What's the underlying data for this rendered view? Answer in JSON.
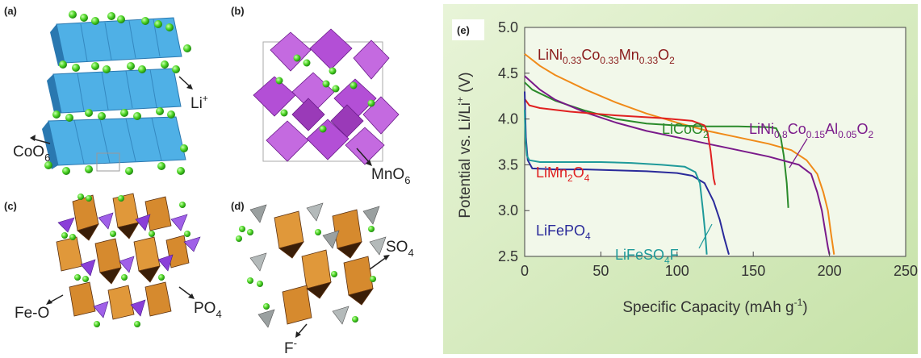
{
  "panels": {
    "a": {
      "label": "(a)",
      "annotations": [
        {
          "text": "Li",
          "sup": "+",
          "color": "#5a8a1a"
        },
        {
          "text": "CoO",
          "sub": "6",
          "color": "#222222"
        }
      ]
    },
    "b": {
      "label": "(b)",
      "annotations": [
        {
          "text": "MnO",
          "sub": "6",
          "color": "#222222"
        }
      ]
    },
    "c": {
      "label": "(c)",
      "annotations": [
        {
          "text": "Fe-O",
          "color": "#222222"
        },
        {
          "text": "PO",
          "sub": "4",
          "color": "#222222"
        }
      ]
    },
    "d": {
      "label": "(d)",
      "annotations": [
        {
          "text": "SO",
          "sub": "4",
          "color": "#222222"
        },
        {
          "text": "F",
          "sup": "-",
          "color": "#222222"
        }
      ]
    }
  },
  "colors": {
    "cobalt_octahedra": "#4fb0e6",
    "manganese_octahedra": "#b34fd6",
    "iron_polyhedra": "#d68a2e",
    "phosphate_tetrahedra": "#8a3fd8",
    "sulfate_tetrahedra": "#9aa0a0",
    "lithium_atoms": "#4fd626",
    "chart_background": "#d9ecc4"
  },
  "chart_data": {
    "type": "line",
    "panel_label": "(e)",
    "xlabel": "Specific Capacity (mAh g",
    "xlabel_sup": "-1",
    "xlabel_end": ")",
    "ylabel": "Potential vs. Li/Li",
    "ylabel_sup": "+",
    "ylabel_end": " (V)",
    "xlim": [
      0,
      250
    ],
    "ylim": [
      2.5,
      5.0
    ],
    "xticks": [
      0,
      50,
      100,
      150,
      200,
      250
    ],
    "yticks": [
      2.5,
      3.0,
      3.5,
      4.0,
      4.5,
      5.0
    ],
    "series": [
      {
        "name": "LiNi0.33Co0.33Mn0.33O2",
        "color": "#f08a18",
        "label_parts": [
          {
            "t": "LiNi"
          },
          {
            "t": "0.33",
            "sub": true
          },
          {
            "t": "Co"
          },
          {
            "t": "0.33",
            "sub": true
          },
          {
            "t": "Mn"
          },
          {
            "t": "0.33",
            "sub": true
          },
          {
            "t": "O"
          },
          {
            "t": "2",
            "sub": true
          }
        ],
        "label_color": "#8a1a1a",
        "x": [
          0,
          10,
          20,
          40,
          60,
          80,
          100,
          120,
          140,
          160,
          175,
          185,
          192,
          196,
          199,
          201,
          203
        ],
        "y": [
          4.71,
          4.58,
          4.48,
          4.32,
          4.18,
          4.06,
          3.96,
          3.87,
          3.8,
          3.73,
          3.66,
          3.55,
          3.4,
          3.2,
          3.0,
          2.75,
          2.52
        ]
      },
      {
        "name": "LiCoO2",
        "color": "#2a8a2a",
        "label_parts": [
          {
            "t": "LiCoO"
          },
          {
            "t": "2",
            "sub": true
          }
        ],
        "label_color": "#2a8a2a",
        "x": [
          0,
          5,
          10,
          20,
          40,
          60,
          80,
          100,
          120,
          140,
          160,
          165,
          168,
          170,
          172,
          173
        ],
        "y": [
          4.4,
          4.32,
          4.28,
          4.2,
          4.09,
          4.0,
          3.95,
          3.93,
          3.92,
          3.92,
          3.91,
          3.9,
          3.8,
          3.6,
          3.3,
          3.03
        ]
      },
      {
        "name": "LiNi0.8Co0.15Al0.05O2",
        "color": "#7a1a8a",
        "label_parts": [
          {
            "t": "LiNi"
          },
          {
            "t": "0.8",
            "sub": true
          },
          {
            "t": "Co"
          },
          {
            "t": "0.15",
            "sub": true
          },
          {
            "t": "Al"
          },
          {
            "t": "0.05",
            "sub": true
          },
          {
            "t": "O"
          },
          {
            "t": "2",
            "sub": true
          }
        ],
        "label_color": "#7a1a8a",
        "x": [
          0,
          10,
          20,
          40,
          60,
          80,
          100,
          120,
          140,
          160,
          180,
          188,
          192,
          195,
          197,
          199,
          200
        ],
        "y": [
          4.47,
          4.32,
          4.21,
          4.07,
          3.96,
          3.87,
          3.8,
          3.73,
          3.66,
          3.59,
          3.5,
          3.4,
          3.2,
          3.0,
          2.8,
          2.6,
          2.52
        ]
      },
      {
        "name": "LiMn2O4",
        "color": "#e02020",
        "label_parts": [
          {
            "t": "LiMn"
          },
          {
            "t": "2",
            "sub": true
          },
          {
            "t": "O"
          },
          {
            "t": "4",
            "sub": true
          }
        ],
        "label_color": "#e02020",
        "x": [
          0,
          3,
          10,
          30,
          60,
          90,
          110,
          118,
          120,
          122,
          124,
          125
        ],
        "y": [
          4.22,
          4.15,
          4.12,
          4.08,
          4.04,
          4.01,
          3.98,
          3.93,
          3.85,
          3.65,
          3.35,
          3.28
        ]
      },
      {
        "name": "LiFePO4",
        "color": "#2a2a9a",
        "label_parts": [
          {
            "t": "LiFePO"
          },
          {
            "t": "4",
            "sub": true
          }
        ],
        "label_color": "#2a2a9a",
        "x": [
          0,
          0.8,
          2,
          5,
          20,
          40,
          60,
          80,
          100,
          110,
          118,
          124,
          128,
          131,
          134
        ],
        "y": [
          4.3,
          3.8,
          3.55,
          3.46,
          3.45,
          3.45,
          3.44,
          3.43,
          3.41,
          3.38,
          3.3,
          3.1,
          2.9,
          2.7,
          2.52
        ]
      },
      {
        "name": "LiFeSO4F",
        "color": "#1f9a9a",
        "label_parts": [
          {
            "t": "LiFeSO"
          },
          {
            "t": "4",
            "sub": true
          },
          {
            "t": "F"
          }
        ],
        "label_color": "#1f9a9a",
        "x": [
          0,
          0.5,
          1.5,
          3,
          10,
          30,
          50,
          70,
          90,
          105,
          112,
          115,
          117,
          118.5,
          119.5
        ],
        "y": [
          4.1,
          3.8,
          3.6,
          3.55,
          3.53,
          3.53,
          3.53,
          3.52,
          3.5,
          3.48,
          3.42,
          3.3,
          3.0,
          2.75,
          2.52
        ]
      }
    ]
  }
}
